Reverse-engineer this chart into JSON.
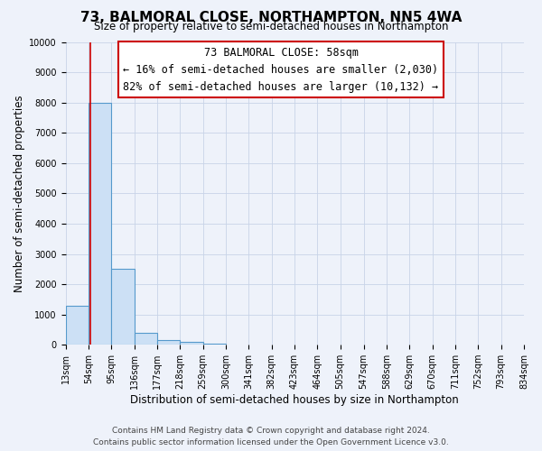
{
  "title": "73, BALMORAL CLOSE, NORTHAMPTON, NN5 4WA",
  "subtitle": "Size of property relative to semi-detached houses in Northampton",
  "xlabel": "Distribution of semi-detached houses by size in Northampton",
  "ylabel": "Number of semi-detached properties",
  "bin_edges": [
    13,
    54,
    95,
    136,
    177,
    218,
    259,
    300,
    341,
    382,
    423,
    464,
    505,
    547,
    588,
    629,
    670,
    711,
    752,
    793,
    834
  ],
  "bin_values": [
    1300,
    8000,
    2500,
    400,
    150,
    100,
    50,
    0,
    0,
    0,
    0,
    0,
    0,
    0,
    0,
    0,
    0,
    0,
    0,
    0
  ],
  "bar_facecolor": "#cce0f5",
  "bar_edgecolor": "#5599cc",
  "property_line_x": 58,
  "property_line_color": "#cc0000",
  "annotation_title": "73 BALMORAL CLOSE: 58sqm",
  "annotation_line1": "← 16% of semi-detached houses are smaller (2,030)",
  "annotation_line2": "82% of semi-detached houses are larger (10,132) →",
  "annotation_box_edgecolor": "#cc0000",
  "ylim": [
    0,
    10000
  ],
  "yticks": [
    0,
    1000,
    2000,
    3000,
    4000,
    5000,
    6000,
    7000,
    8000,
    9000,
    10000
  ],
  "tick_labels": [
    "13sqm",
    "54sqm",
    "95sqm",
    "136sqm",
    "177sqm",
    "218sqm",
    "259sqm",
    "300sqm",
    "341sqm",
    "382sqm",
    "423sqm",
    "464sqm",
    "505sqm",
    "547sqm",
    "588sqm",
    "629sqm",
    "670sqm",
    "711sqm",
    "752sqm",
    "793sqm",
    "834sqm"
  ],
  "footer1": "Contains HM Land Registry data © Crown copyright and database right 2024.",
  "footer2": "Contains public sector information licensed under the Open Government Licence v3.0.",
  "background_color": "#eef2fa",
  "grid_color": "#c8d4e8",
  "annotation_fontsize": 8.5,
  "title_fontsize": 11,
  "subtitle_fontsize": 8.5,
  "axis_label_fontsize": 8.5,
  "tick_fontsize": 7.0,
  "footer_fontsize": 6.5
}
